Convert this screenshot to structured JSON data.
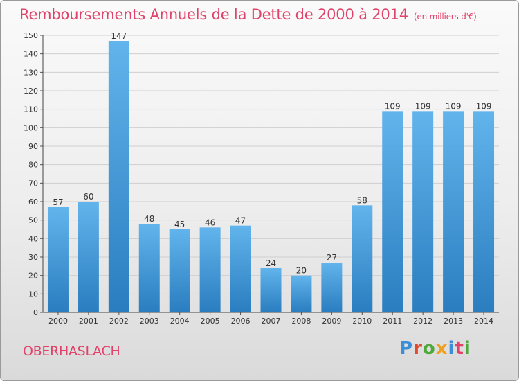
{
  "title": "Remboursements Annuels de la Dette de 2000 à 2014",
  "unit": "(en milliers d'€)",
  "commune": "OBERHASLACH",
  "logo": {
    "text": "Proxiti",
    "colors": [
      "#3a8fd8",
      "#e04b2d",
      "#4fa83a",
      "#f0a020",
      "#3a8fd8",
      "#e0436a",
      "#4fa83a"
    ]
  },
  "colors": {
    "accent": "#e0436a",
    "bar_light": "#62b4ec",
    "bar_dark": "#2a7dbf"
  },
  "chart_data": {
    "type": "bar",
    "categories": [
      "2000",
      "2001",
      "2002",
      "2003",
      "2004",
      "2005",
      "2006",
      "2007",
      "2008",
      "2009",
      "2010",
      "2011",
      "2012",
      "2013",
      "2014"
    ],
    "values": [
      57,
      60,
      147,
      48,
      45,
      46,
      47,
      24,
      20,
      27,
      58,
      109,
      109,
      109,
      109
    ],
    "ylim": [
      0,
      150
    ],
    "yticks": [
      0,
      10,
      20,
      30,
      40,
      50,
      60,
      70,
      80,
      90,
      100,
      110,
      120,
      130,
      140,
      150
    ],
    "grid": true
  }
}
